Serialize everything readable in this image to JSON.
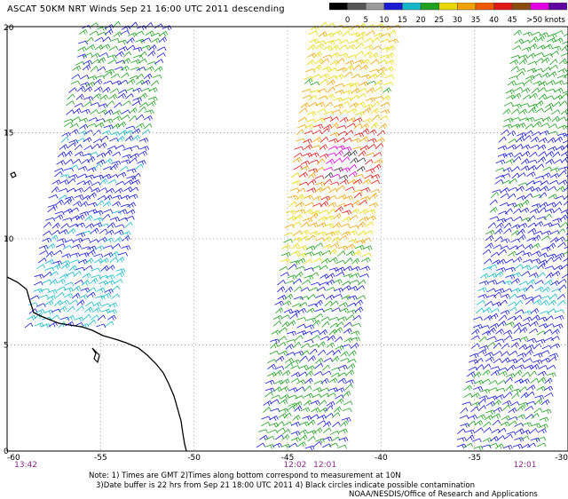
{
  "title": "ASCAT 50KM NRT Winds   Sep 21 16:00 UTC 2011  descending",
  "legend": {
    "labels": [
      "0",
      "5",
      "10",
      "15",
      "20",
      "25",
      "30",
      "35",
      "40",
      "45",
      ">50 knots"
    ],
    "colors": [
      "#000000",
      "#555555",
      "#9a9a9a",
      "#1b1bd4",
      "#14b8c8",
      "#1fa11f",
      "#e8d800",
      "#f0a000",
      "#ee5a00",
      "#e01818",
      "#8a4a10",
      "#e000e0",
      "#6000a0"
    ]
  },
  "axes": {
    "x_ticks": [
      {
        "label": "-60",
        "lon": -60
      },
      {
        "label": "-55",
        "lon": -55
      },
      {
        "label": "-50",
        "lon": -50
      },
      {
        "label": "-45",
        "lon": -45
      },
      {
        "label": "-40",
        "lon": -40
      },
      {
        "label": "-35",
        "lon": -35
      },
      {
        "label": "-30",
        "lon": -30
      }
    ],
    "y_ticks": [
      {
        "label": "20",
        "lat": 20
      },
      {
        "label": "15",
        "lat": 15
      },
      {
        "label": "10",
        "lat": 10
      },
      {
        "label": "5",
        "lat": 5
      },
      {
        "label": "0",
        "lat": 0
      }
    ],
    "lon_range": [
      -60,
      -30
    ],
    "lat_range": [
      0,
      20
    ]
  },
  "swaths": [
    {
      "time": "13:42",
      "lon": -59
    },
    {
      "time": "12:02",
      "lon": -44.6
    },
    {
      "time": "12:01",
      "lon": -43
    },
    {
      "time": "12:01",
      "lon": -32.3
    }
  ],
  "notes": {
    "line1": "Note: 1) Times are GMT 2)Times along bottom correspond to measurement at 10N",
    "line2": "3)Date buffer is 22 hrs from Sep 21 18:00 UTC 2011 4) Black circles indicate possible contamination",
    "line3": "NOAA/NESDIS/Office of Research and Applications"
  },
  "colors": {
    "time_label": "#8a2a8a",
    "grid": "#a8a8a8",
    "coast": "#000000"
  }
}
